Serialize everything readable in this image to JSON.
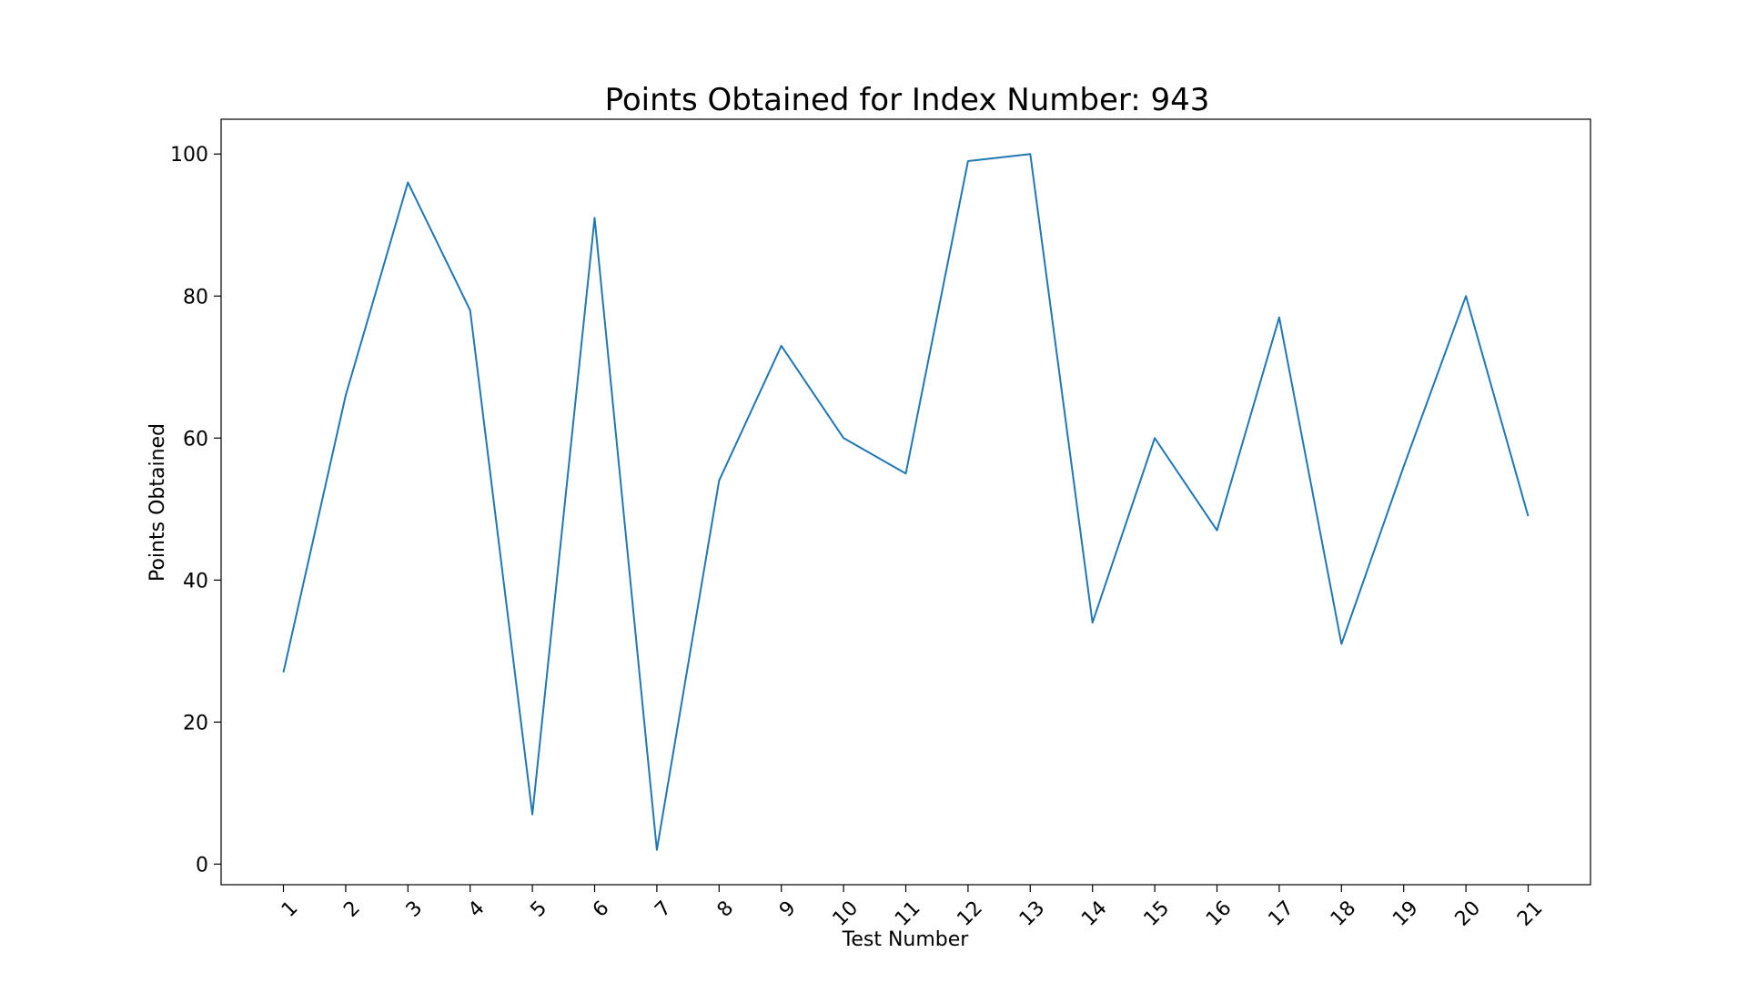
{
  "chart_data": {
    "type": "line",
    "title": "Points Obtained for Index Number: 943",
    "xlabel": "Test Number",
    "ylabel": "Points Obtained",
    "categories": [
      "1",
      "2",
      "3",
      "4",
      "5",
      "6",
      "7",
      "8",
      "9",
      "10",
      "11",
      "12",
      "13",
      "14",
      "15",
      "16",
      "17",
      "18",
      "19",
      "20",
      "21"
    ],
    "series": [
      {
        "values": [
          27,
          66,
          96,
          78,
          7,
          91,
          2,
          54,
          73,
          60,
          55,
          99,
          100,
          34,
          60,
          47,
          77,
          31,
          56,
          80,
          49
        ],
        "color": "#1f77b4"
      }
    ],
    "yticks": [
      0,
      20,
      40,
      60,
      80,
      100
    ],
    "ylim": [
      -2.9,
      104.9
    ],
    "grid": false,
    "xtick_rotation": -45
  }
}
